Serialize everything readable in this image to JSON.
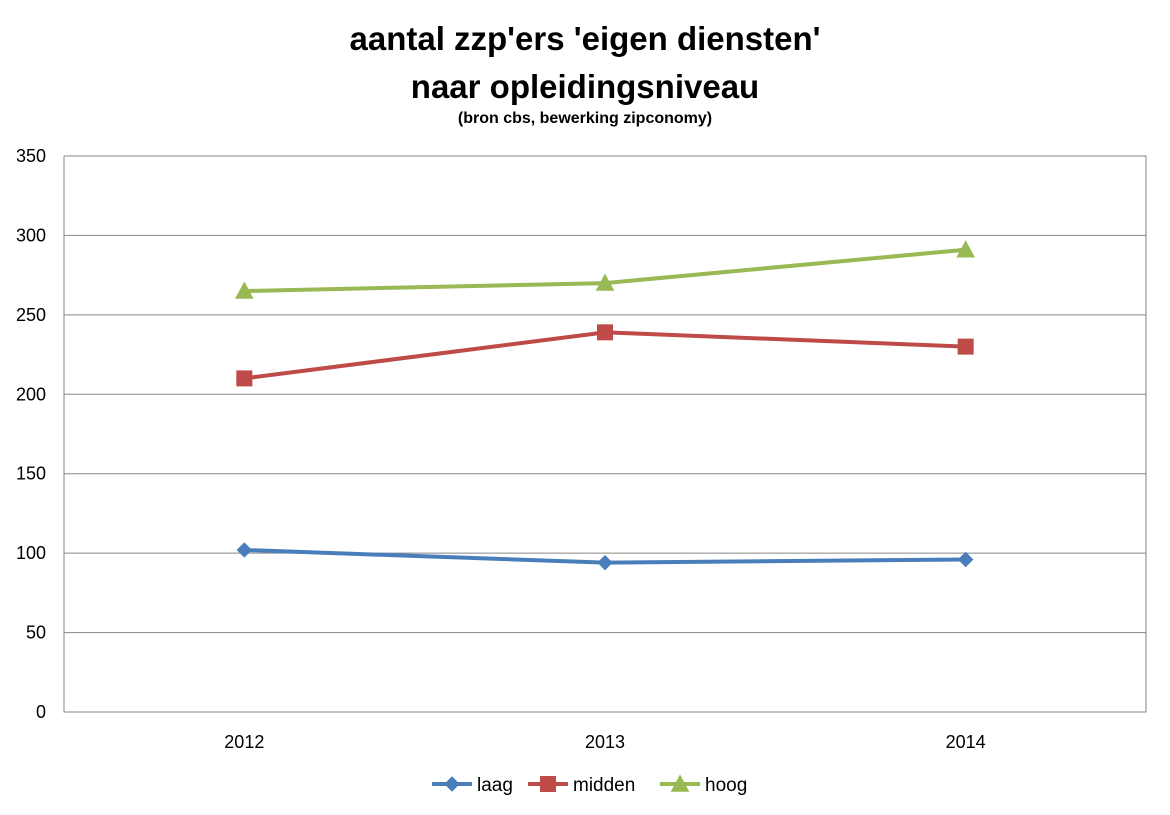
{
  "chart_data": {
    "type": "line",
    "title": "aantal zzp'ers 'eigen diensten'",
    "title_line2": "naar opleidingsniveau",
    "subtitle": "(bron cbs, bewerking zipconomy)",
    "categories": [
      "2012",
      "2013",
      "2014"
    ],
    "ylim": [
      0,
      350
    ],
    "yticks": [
      0,
      50,
      100,
      150,
      200,
      250,
      300,
      350
    ],
    "grid": true,
    "legend_position": "bottom",
    "series": [
      {
        "name": "laag",
        "values": [
          102,
          94,
          96
        ],
        "color": "#4a7ebb",
        "marker": "diamond"
      },
      {
        "name": "midden",
        "values": [
          210,
          239,
          230
        ],
        "color": "#be4b48",
        "marker": "square"
      },
      {
        "name": "hoog",
        "values": [
          265,
          270,
          291
        ],
        "color": "#98b954",
        "marker": "triangle"
      }
    ]
  }
}
